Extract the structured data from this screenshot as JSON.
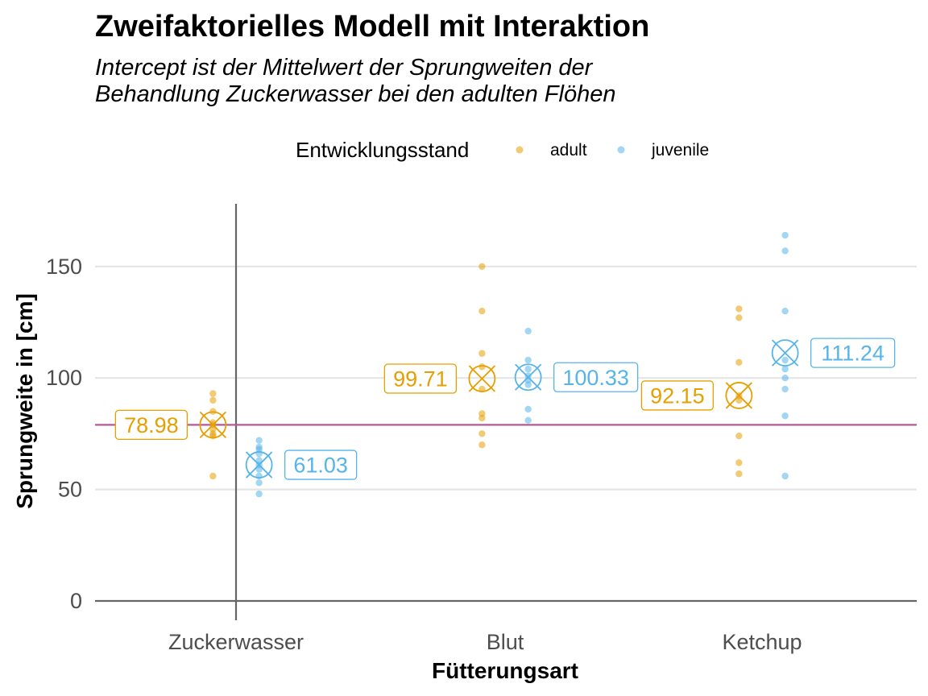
{
  "chart_data": {
    "type": "scatter",
    "title": "Zweifaktorielles Modell mit Interaktion",
    "subtitle_lines": [
      "Intercept ist der Mittelwert der Sprungweiten der",
      "Behandlung Zuckerwasser bei den adulten Flöhen"
    ],
    "xlabel": "Fütterungsart",
    "ylabel": "Sprungweite in [cm]",
    "categories": [
      "Zuckerwasser",
      "Blut",
      "Ketchup"
    ],
    "ylim": [
      0,
      178
    ],
    "yticks": [
      0,
      50,
      100,
      150
    ],
    "grid": "horizontal",
    "legend": {
      "title": "Entwicklungsstand",
      "position": "top",
      "entries": [
        "adult",
        "juvenile"
      ]
    },
    "intercept_line": {
      "y": 78.98,
      "color": "#b5589a"
    },
    "vertical_line_category": "Zuckerwasser",
    "series": [
      {
        "name": "adult",
        "color": "#E69F00",
        "offset": -0.25,
        "points": [
          [
            93,
            90,
            85,
            80,
            79,
            77,
            75,
            74,
            56
          ],
          [
            150,
            130,
            111,
            105,
            95,
            84,
            82,
            75,
            70
          ],
          [
            131,
            127,
            107,
            92,
            90,
            74,
            62,
            57
          ]
        ],
        "means": [
          78.98,
          99.71,
          92.15
        ],
        "labels": [
          "78.98",
          "99.71",
          "92.15"
        ]
      },
      {
        "name": "juvenile",
        "color": "#56B4E9",
        "offset": 0.25,
        "points": [
          [
            72,
            69,
            68,
            66,
            63,
            61,
            59,
            56,
            53,
            48
          ],
          [
            121,
            108,
            104,
            101,
            99,
            97,
            86,
            81
          ],
          [
            164,
            157,
            130,
            108,
            104,
            100,
            95,
            83,
            56
          ]
        ],
        "means": [
          61.03,
          100.33,
          111.24
        ],
        "labels": [
          "61.03",
          "100.33",
          "111.24"
        ]
      }
    ]
  }
}
